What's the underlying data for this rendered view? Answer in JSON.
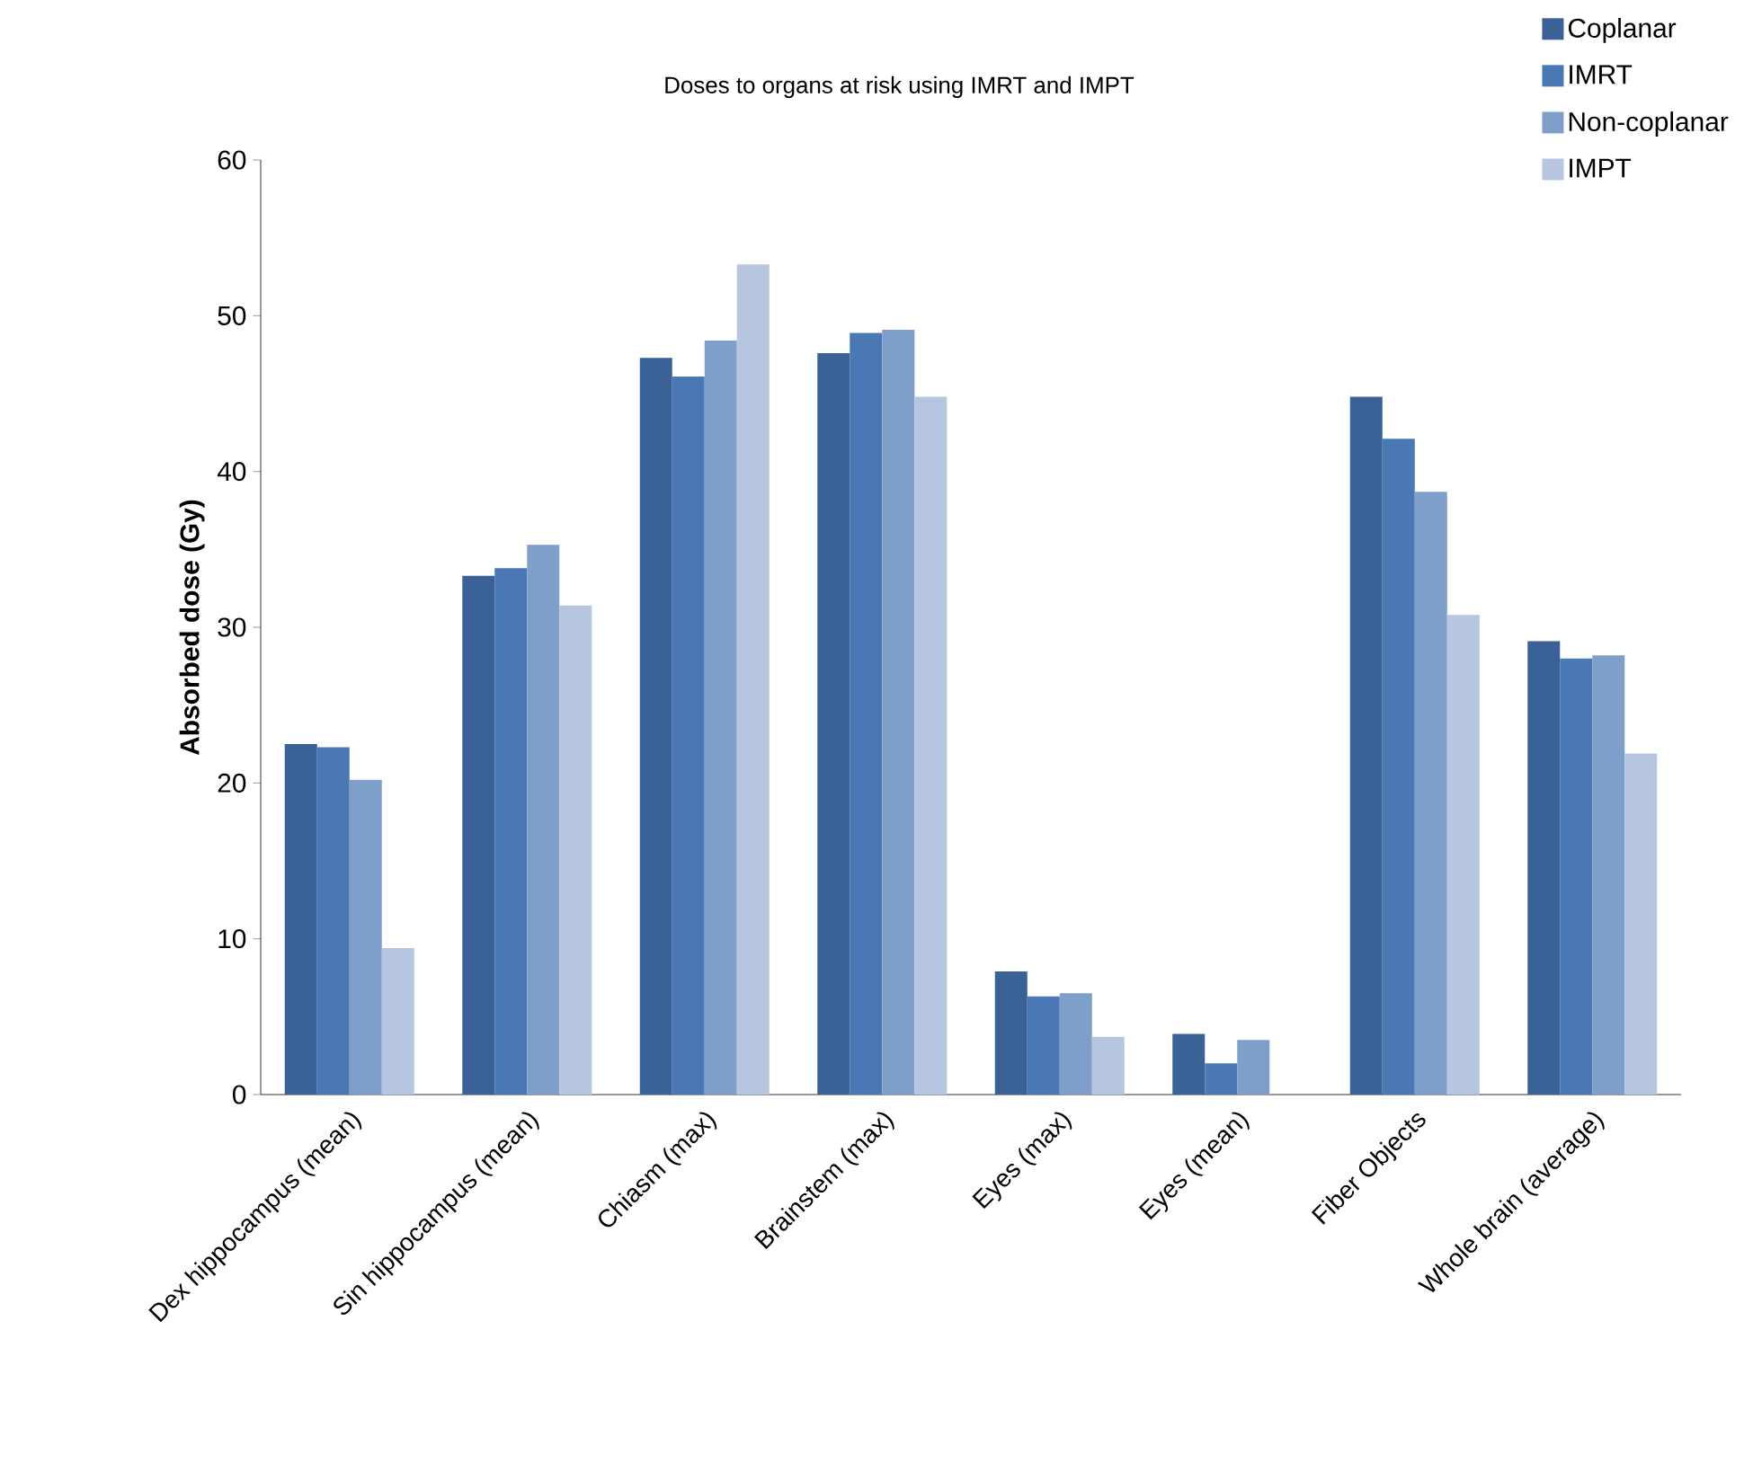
{
  "chart_data": {
    "type": "bar",
    "title": "Doses to organs at risk using IMRT and IMPT",
    "ylabel": "Absorbed dose (Gy)",
    "categories": [
      "Dex hippocampus (mean)",
      "Sin hippocampus (mean)",
      "Chiasm (max)",
      "Brainstem (max)",
      "Eyes (max)",
      "Eyes (mean)",
      "Fiber Objects",
      "Whole brain (average)"
    ],
    "series": [
      {
        "name": "Coplanar",
        "color": "#3a6296",
        "values": [
          22.5,
          33.3,
          47.3,
          47.6,
          7.9,
          3.9,
          44.8,
          29.1
        ]
      },
      {
        "name": "IMRT",
        "color": "#4a78b5",
        "values": [
          22.3,
          33.8,
          46.1,
          48.9,
          6.3,
          2.0,
          42.1,
          28.0
        ]
      },
      {
        "name": "Non-coplanar",
        "color": "#7f9fcb",
        "values": [
          20.2,
          35.3,
          48.4,
          49.1,
          6.5,
          3.5,
          38.7,
          28.2
        ]
      },
      {
        "name": "IMPT",
        "color": "#b6c5e0",
        "values": [
          9.4,
          31.4,
          53.3,
          44.8,
          3.7,
          0,
          30.8,
          21.9
        ]
      }
    ],
    "ylim": [
      0,
      60
    ],
    "yticks": [
      0,
      10,
      20,
      30,
      40,
      50,
      60
    ],
    "legend": "top right",
    "grid": false
  }
}
